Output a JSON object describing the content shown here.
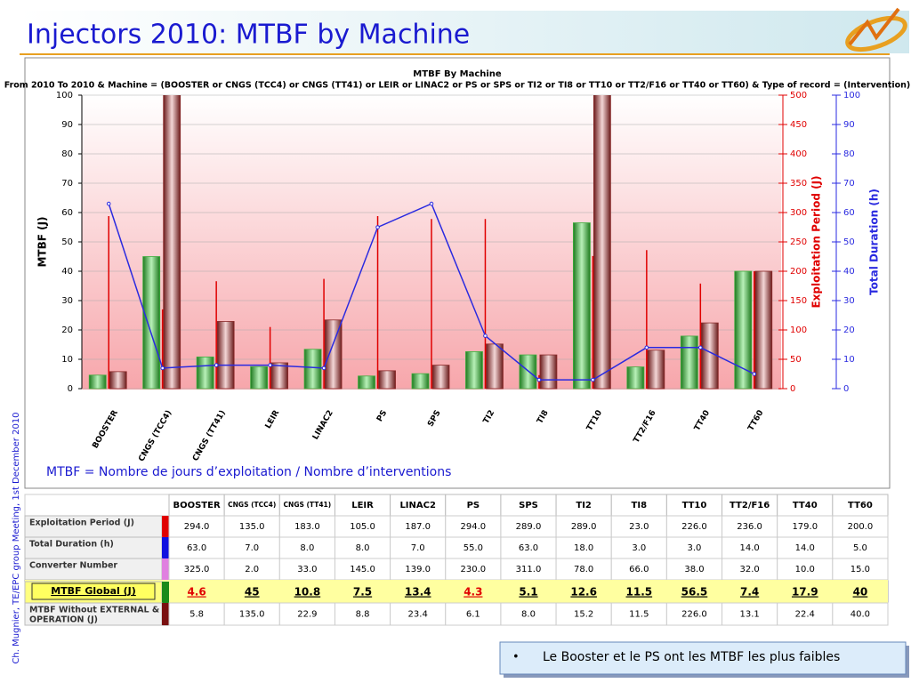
{
  "slide": {
    "title": "Injectors 2010: MTBF by Machine",
    "side_note": "Ch. Mugnier, TE/EPC group Meeting, 1st December 2010",
    "formula": "MTBF = Nombre de jours d’exploitation / Nombre d’interventions",
    "bullet": "Le Booster et le PS ont les MTBF les plus faibles"
  },
  "chart_data": {
    "type": "bar",
    "title": "MTBF By Machine",
    "subtitle": "From 2010 To 2010 & Machine = (BOOSTER or CNGS (TCC4) or CNGS (TT41) or LEIR or LINAC2 or PS or SPS or TI2 or TI8 or TT10 or TT2/F16 or TT40 or TT60) & Type of record = (Intervention)",
    "categories": [
      "BOOSTER",
      "CNGS (TCC4)",
      "CNGS (TT41)",
      "LEIR",
      "LINAC2",
      "PS",
      "SPS",
      "TI2",
      "TI8",
      "TT10",
      "TT2/F16",
      "TT40",
      "TT60"
    ],
    "series": [
      {
        "name": "MTBF Global (J)",
        "type": "bar",
        "color": "#3fae3f",
        "values": [
          4.6,
          45,
          10.8,
          7.5,
          13.4,
          4.3,
          5.1,
          12.6,
          11.5,
          56.5,
          7.4,
          17.9,
          40
        ]
      },
      {
        "name": "MTBF Without EXTERNAL & OPERATION (J)",
        "type": "bar",
        "color": "#8a2a2a",
        "values": [
          5.8,
          135,
          22.9,
          8.8,
          23.4,
          6.1,
          8.0,
          15.2,
          11.5,
          226,
          13.1,
          22.4,
          40
        ]
      },
      {
        "name": "Exploitation Period (J)",
        "type": "stem",
        "axis": "y2",
        "color": "#e00000",
        "values": [
          294,
          135,
          183,
          105,
          187,
          294,
          289,
          289,
          23,
          226,
          236,
          179,
          200
        ]
      },
      {
        "name": "Total Duration (h)",
        "type": "line",
        "axis": "y3",
        "color": "#2a2ae0",
        "values": [
          63,
          7,
          8,
          8,
          7,
          55,
          63,
          18,
          3,
          3,
          14,
          14,
          5
        ]
      }
    ],
    "ylabel": "MTBF (J)",
    "y2label": "Exploitation Period (J)",
    "y3label": "Total Duration (h)",
    "ylim": [
      0,
      100
    ],
    "yticks": [
      0,
      10,
      20,
      30,
      40,
      50,
      60,
      70,
      80,
      90,
      100
    ],
    "y2lim": [
      0,
      500
    ],
    "y2ticks": [
      0,
      50,
      100,
      150,
      200,
      250,
      300,
      350,
      400,
      450,
      500
    ],
    "y3lim": [
      0,
      100
    ],
    "y3ticks": [
      0,
      10,
      20,
      30,
      40,
      50,
      60,
      70,
      80,
      90,
      100
    ],
    "grid": true
  },
  "table": {
    "rows": [
      {
        "label": "Exploitation Period (J)",
        "color": "#e00000",
        "cells": [
          "294.0",
          "135.0",
          "183.0",
          "105.0",
          "187.0",
          "294.0",
          "289.0",
          "289.0",
          "23.0",
          "226.0",
          "236.0",
          "179.0",
          "200.0"
        ]
      },
      {
        "label": "Total Duration (h)",
        "color": "#1010e0",
        "cells": [
          "63.0",
          "7.0",
          "8.0",
          "8.0",
          "7.0",
          "55.0",
          "63.0",
          "18.0",
          "3.0",
          "3.0",
          "14.0",
          "14.0",
          "5.0"
        ]
      },
      {
        "label": "Converter Number",
        "color": "#e080e0",
        "cells": [
          "325.0",
          "2.0",
          "33.0",
          "145.0",
          "139.0",
          "230.0",
          "311.0",
          "78.0",
          "66.0",
          "38.0",
          "32.0",
          "10.0",
          "15.0"
        ]
      },
      {
        "label": "MTBF Global (J)",
        "color": "#1a8a1a"
      },
      {
        "label": "MTBF Without EXTERNAL & OPERATION (J)",
        "color": "#7a1010",
        "cells": [
          "5.8",
          "135.0",
          "22.9",
          "8.8",
          "23.4",
          "6.1",
          "8.0",
          "15.2",
          "11.5",
          "226.0",
          "13.1",
          "22.4",
          "40.0"
        ]
      }
    ],
    "highlight_color": "#e00000",
    "highlight_cells": [
      0,
      5
    ]
  }
}
